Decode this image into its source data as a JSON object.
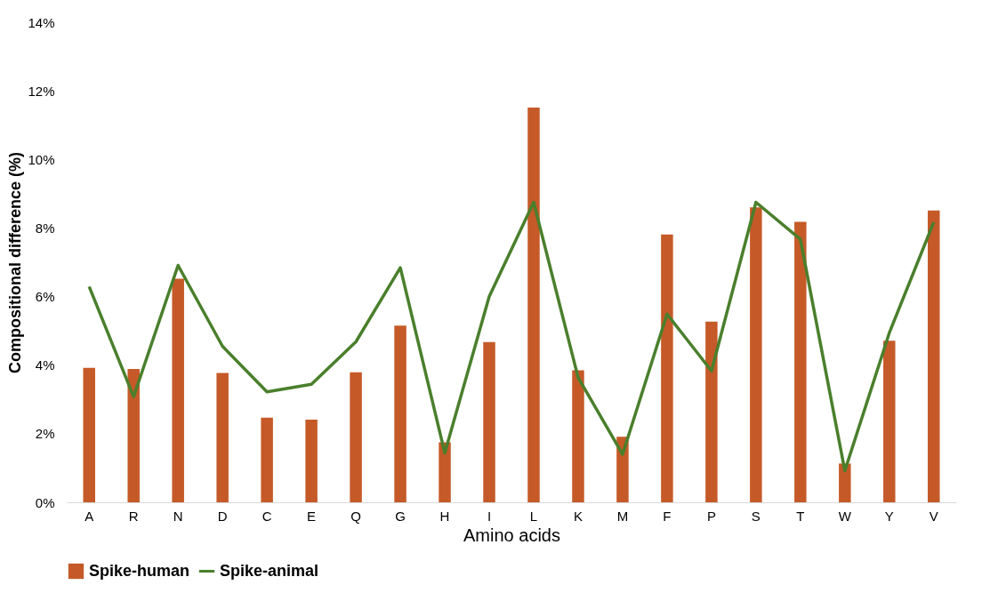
{
  "chart_data": {
    "type": "bar",
    "xlabel": "Amino acids",
    "ylabel": "Compositional difference (%)",
    "categories": [
      "A",
      "R",
      "N",
      "D",
      "C",
      "E",
      "Q",
      "G",
      "H",
      "I",
      "L",
      "K",
      "M",
      "F",
      "P",
      "S",
      "T",
      "W",
      "Y",
      "V"
    ],
    "series": [
      {
        "name": "Spike-human",
        "color": "#c55a28",
        "values": [
          3.92,
          3.89,
          6.52,
          3.77,
          2.47,
          2.41,
          3.79,
          5.15,
          1.75,
          4.67,
          11.51,
          3.85,
          1.91,
          7.81,
          5.27,
          8.6,
          8.18,
          1.13,
          4.71,
          8.51
        ]
      },
      {
        "name": "Spike-animal",
        "type": "line",
        "color": "#4a7f2c",
        "values": [
          6.29,
          3.08,
          6.91,
          4.55,
          3.22,
          3.44,
          4.68,
          6.84,
          1.44,
          6.0,
          8.75,
          3.64,
          1.4,
          5.49,
          3.83,
          8.75,
          7.67,
          0.92,
          4.94,
          8.17
        ]
      }
    ],
    "ylim": [
      0,
      14
    ],
    "yticks": [
      {
        "value": 0,
        "label": "0%"
      },
      {
        "value": 2,
        "label": "2%"
      },
      {
        "value": 4,
        "label": "4%"
      },
      {
        "value": 6,
        "label": "6%"
      },
      {
        "value": 8,
        "label": "8%"
      },
      {
        "value": 10,
        "label": "10%"
      },
      {
        "value": 12,
        "label": "12%"
      },
      {
        "value": 14,
        "label": "14%"
      }
    ],
    "grid": false,
    "legend": "bottom",
    "line_style": "solid",
    "marker": "none"
  }
}
